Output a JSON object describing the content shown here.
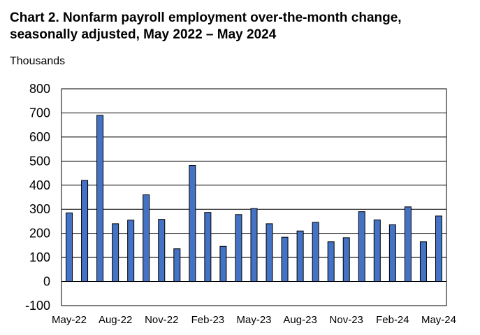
{
  "chart_data": {
    "type": "bar",
    "title_line1": "Chart 2. Nonfarm payroll employment over-the-month change,",
    "title_line2": "seasonally adjusted, May 2022 – May 2024",
    "ylabel": "Thousands",
    "xlabel": "",
    "ylim": [
      -100,
      800
    ],
    "yticks": [
      -100,
      0,
      100,
      200,
      300,
      400,
      500,
      600,
      700,
      800
    ],
    "grid": true,
    "bar_color": "#4472C4",
    "bar_edge_color": "#000000",
    "categories": [
      "May-22",
      "Jun-22",
      "Jul-22",
      "Aug-22",
      "Sep-22",
      "Oct-22",
      "Nov-22",
      "Dec-22",
      "Jan-23",
      "Feb-23",
      "Mar-23",
      "Apr-23",
      "May-23",
      "Jun-23",
      "Jul-23",
      "Aug-23",
      "Sep-23",
      "Oct-23",
      "Nov-23",
      "Dec-23",
      "Jan-24",
      "Feb-24",
      "Mar-24",
      "Apr-24",
      "May-24"
    ],
    "tick_labels": [
      "May-22",
      "Aug-22",
      "Nov-22",
      "Feb-23",
      "May-23",
      "Aug-23",
      "Nov-23",
      "Feb-24",
      "May-24"
    ],
    "values": [
      285,
      420,
      690,
      240,
      255,
      360,
      258,
      136,
      482,
      287,
      146,
      278,
      303,
      240,
      184,
      210,
      246,
      165,
      182,
      290,
      256,
      236,
      310,
      165,
      272
    ]
  }
}
